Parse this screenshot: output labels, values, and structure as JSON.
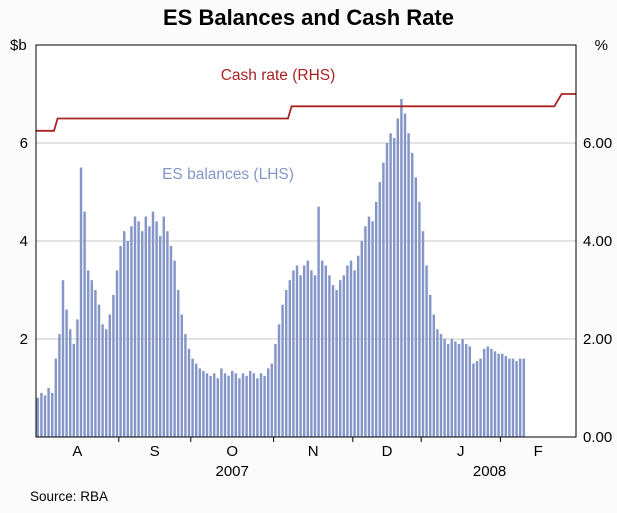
{
  "chart_data": {
    "type": "bar+line",
    "title": "ES Balances and Cash Rate",
    "source": "Source: RBA",
    "annotations": {
      "cash_rate": "Cash rate (RHS)",
      "es_balances": "ES balances (LHS)"
    },
    "left_axis": {
      "unit": "$b",
      "ticks": [
        2,
        4,
        6
      ],
      "range": [
        0,
        8
      ]
    },
    "right_axis": {
      "unit": "%",
      "tick_values": [
        0,
        2,
        4,
        6
      ],
      "ticks": [
        "0.00",
        "2.00",
        "4.00",
        "6.00"
      ],
      "range": [
        0,
        8
      ]
    },
    "x_axis": {
      "total_slots": 150,
      "months": [
        {
          "label": "A",
          "days": 23
        },
        {
          "label": "S",
          "days": 20
        },
        {
          "label": "O",
          "days": 23
        },
        {
          "label": "N",
          "days": 22
        },
        {
          "label": "D",
          "days": 19
        },
        {
          "label": "J",
          "days": 22
        },
        {
          "label": "F",
          "days": 21
        }
      ],
      "years": [
        {
          "label": "2007",
          "slot": 54.5
        },
        {
          "label": "2008",
          "slot": 126
        }
      ]
    },
    "series": [
      {
        "name": "ES balances (LHS)",
        "type": "bar",
        "axis": "left",
        "color": "#8496c8",
        "values": [
          0.8,
          0.9,
          0.85,
          1.0,
          0.9,
          1.6,
          2.1,
          3.2,
          2.6,
          2.2,
          1.9,
          2.4,
          5.5,
          4.6,
          3.4,
          3.2,
          3.0,
          2.7,
          2.3,
          2.2,
          2.5,
          2.9,
          3.4,
          3.9,
          4.2,
          4.0,
          4.3,
          4.5,
          4.4,
          4.2,
          4.5,
          4.3,
          4.6,
          4.4,
          4.1,
          4.5,
          4.2,
          3.9,
          3.6,
          3.0,
          2.5,
          2.1,
          1.8,
          1.6,
          1.5,
          1.4,
          1.35,
          1.3,
          1.25,
          1.3,
          1.2,
          1.4,
          1.3,
          1.25,
          1.35,
          1.3,
          1.2,
          1.3,
          1.25,
          1.35,
          1.3,
          1.2,
          1.3,
          1.25,
          1.4,
          1.5,
          1.9,
          2.3,
          2.7,
          3.0,
          3.2,
          3.4,
          3.5,
          3.3,
          3.5,
          3.6,
          3.4,
          3.3,
          4.7,
          3.6,
          3.5,
          3.3,
          3.1,
          3.0,
          3.2,
          3.3,
          3.5,
          3.6,
          3.4,
          3.7,
          4.0,
          4.3,
          4.5,
          4.4,
          4.8,
          5.2,
          5.6,
          6.0,
          6.2,
          6.1,
          6.5,
          6.9,
          6.6,
          6.2,
          5.8,
          5.3,
          4.8,
          4.2,
          3.5,
          2.9,
          2.5,
          2.2,
          2.1,
          2.0,
          1.9,
          2.0,
          1.95,
          1.9,
          2.0,
          1.9,
          1.85,
          1.5,
          1.55,
          1.6,
          1.8,
          1.85,
          1.8,
          1.75,
          1.7,
          1.7,
          1.65,
          1.6,
          1.6,
          1.55,
          1.6,
          1.6
        ]
      },
      {
        "name": "Cash rate (RHS)",
        "type": "step-line",
        "axis": "right",
        "color": "#aa2222",
        "segments": [
          {
            "start": 0,
            "end": 5,
            "value": 6.25
          },
          {
            "start": 6,
            "end": 70,
            "value": 6.5
          },
          {
            "start": 71,
            "end": 144,
            "value": 6.75
          },
          {
            "start": 146,
            "end": 150,
            "value": 7.0
          }
        ]
      }
    ]
  }
}
